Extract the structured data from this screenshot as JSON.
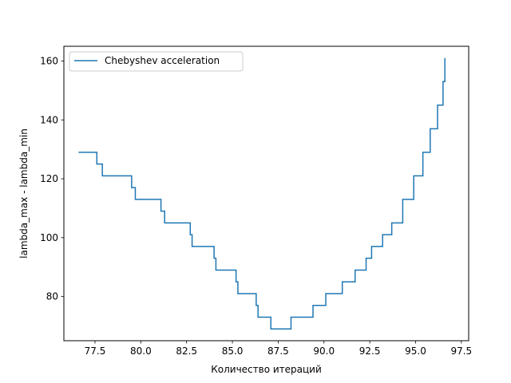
{
  "chart_data": {
    "type": "line",
    "title": "",
    "xlabel": "Количество итераций",
    "ylabel": "lambda_max - lambda_min",
    "xlim": [
      75.8,
      97.9
    ],
    "ylim": [
      65,
      165
    ],
    "xticks": [
      77.5,
      80.0,
      82.5,
      85.0,
      87.5,
      90.0,
      92.5,
      95.0,
      97.5
    ],
    "xtick_labels": [
      "77.5",
      "80.0",
      "82.5",
      "85.0",
      "87.5",
      "90.0",
      "92.5",
      "95.0",
      "97.5"
    ],
    "yticks": [
      80,
      100,
      120,
      140,
      160
    ],
    "ytick_labels": [
      "80",
      "100",
      "120",
      "140",
      "160"
    ],
    "grid": false,
    "legend_position": "top-left",
    "series": [
      {
        "name": "Chebyshev acceleration",
        "color": "#1f77b4",
        "step": "post",
        "x": [
          76.6,
          77.6,
          77.9,
          79.5,
          79.7,
          81.1,
          81.3,
          82.7,
          82.8,
          84.0,
          84.1,
          85.2,
          85.3,
          86.3,
          86.4,
          87.1,
          88.2,
          89.4,
          90.1,
          91.0,
          91.7,
          92.3,
          92.6,
          93.2,
          93.7,
          94.3,
          94.9,
          95.4,
          95.8,
          96.2,
          96.5,
          96.6
        ],
        "y": [
          129,
          125,
          121,
          117,
          113,
          109,
          105,
          101,
          97,
          93,
          89,
          85,
          81,
          77,
          73,
          69,
          73,
          77,
          81,
          85,
          89,
          93,
          97,
          101,
          105,
          113,
          121,
          129,
          137,
          145,
          153,
          161
        ]
      }
    ]
  }
}
